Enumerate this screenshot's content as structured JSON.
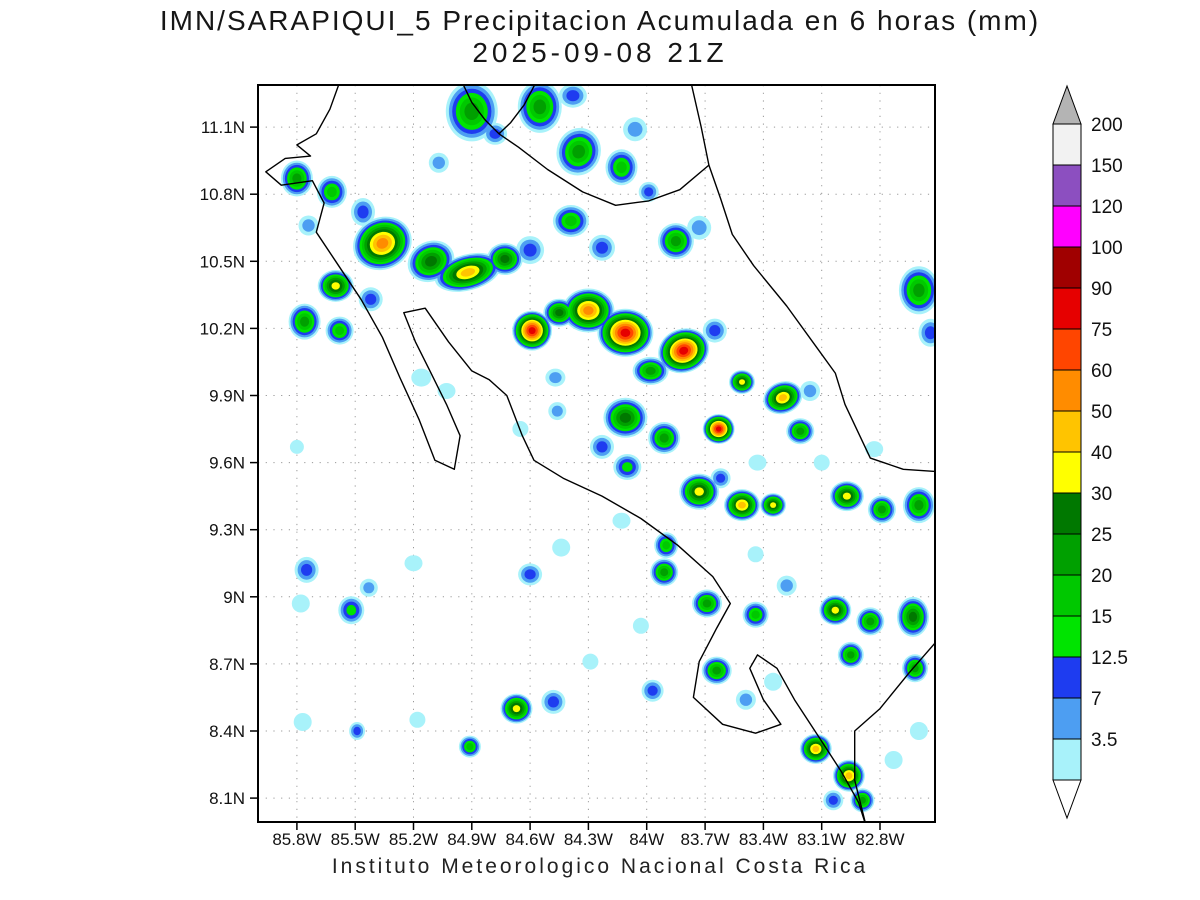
{
  "chart_data": {
    "type": "heatmap",
    "title": "IMN/SARAPIQUI_5 Precipitacion Acumulada en 6 horas (mm)",
    "subtitle": "2025-09-08 21Z",
    "caption": "Instituto Meteorologico Nacional Costa Rica",
    "units": "mm",
    "extent": {
      "lon_west": 86.0,
      "lon_east": 82.517,
      "lat_north": 11.288,
      "lat_south": 7.993
    },
    "x_axis": {
      "ticks": [
        {
          "v": 85.8,
          "label": "85.8W"
        },
        {
          "v": 85.5,
          "label": "85.5W"
        },
        {
          "v": 85.2,
          "label": "85.2W"
        },
        {
          "v": 84.9,
          "label": "84.9W"
        },
        {
          "v": 84.6,
          "label": "84.6W"
        },
        {
          "v": 84.3,
          "label": "84.3W"
        },
        {
          "v": 84.0,
          "label": "84W"
        },
        {
          "v": 83.7,
          "label": "83.7W"
        },
        {
          "v": 83.4,
          "label": "83.4W"
        },
        {
          "v": 83.1,
          "label": "83.1W"
        },
        {
          "v": 82.8,
          "label": "82.8W"
        }
      ]
    },
    "y_axis": {
      "ticks": [
        {
          "v": 11.1,
          "label": "11.1N"
        },
        {
          "v": 10.8,
          "label": "10.8N"
        },
        {
          "v": 10.5,
          "label": "10.5N"
        },
        {
          "v": 10.2,
          "label": "10.2N"
        },
        {
          "v": 9.9,
          "label": "9.9N"
        },
        {
          "v": 9.6,
          "label": "9.6N"
        },
        {
          "v": 9.3,
          "label": "9.3N"
        },
        {
          "v": 9.0,
          "label": "9N"
        },
        {
          "v": 8.7,
          "label": "8.7N"
        },
        {
          "v": 8.4,
          "label": "8.4N"
        },
        {
          "v": 8.1,
          "label": "8.1N"
        }
      ]
    },
    "levels": [
      3.5,
      7,
      12.5,
      15,
      20,
      25,
      30,
      40,
      50,
      60,
      75,
      90,
      100,
      120,
      150,
      200
    ],
    "level_colors": [
      "#a8f2fa",
      "#4d9ef2",
      "#1e3cf0",
      "#00e400",
      "#00c800",
      "#00a000",
      "#007800",
      "#ffff00",
      "#ffc400",
      "#ff8c00",
      "#ff4500",
      "#e60000",
      "#a00000",
      "#ff00ff",
      "#8c4fc0",
      "#f2f2f2"
    ],
    "colorbar": {
      "tick_labels": [
        "200",
        "150",
        "120",
        "100",
        "90",
        "75",
        "60",
        "50",
        "40",
        "30",
        "25",
        "20",
        "15",
        "12.5",
        "7",
        "3.5"
      ],
      "arrow_top_color": "#b4b4b4",
      "arrow_bottom_color": "#ffffff"
    },
    "style": {
      "grid_color": "#999999",
      "coast_color": "#000000",
      "background": "#ffffff"
    },
    "cells_format": "[lon_w, lat_n, rx_px, ry_px, max_level_mm, rotation_deg]",
    "cells": [
      [
        84.9,
        11.17,
        26,
        30,
        25,
        0
      ],
      [
        84.55,
        11.19,
        22,
        26,
        25,
        0
      ],
      [
        84.38,
        11.24,
        14,
        12,
        12.5,
        0
      ],
      [
        84.78,
        11.07,
        12,
        11,
        12.5,
        0
      ],
      [
        85.07,
        10.94,
        10,
        10,
        7,
        0
      ],
      [
        84.35,
        10.99,
        22,
        24,
        25,
        20
      ],
      [
        84.13,
        10.92,
        16,
        18,
        20,
        0
      ],
      [
        84.06,
        11.09,
        12,
        12,
        7,
        0
      ],
      [
        83.99,
        10.81,
        10,
        10,
        12.5,
        0
      ],
      [
        85.8,
        10.87,
        16,
        18,
        25,
        0
      ],
      [
        85.62,
        10.81,
        15,
        16,
        20,
        0
      ],
      [
        85.46,
        10.72,
        12,
        14,
        12.5,
        0
      ],
      [
        85.74,
        10.66,
        10,
        10,
        7,
        0
      ],
      [
        85.36,
        10.58,
        30,
        26,
        60,
        -25
      ],
      [
        85.11,
        10.5,
        24,
        20,
        30,
        -25
      ],
      [
        84.92,
        10.45,
        34,
        18,
        50,
        -15
      ],
      [
        84.73,
        10.51,
        18,
        16,
        30,
        0
      ],
      [
        84.6,
        10.55,
        14,
        14,
        12.5,
        0
      ],
      [
        85.6,
        10.39,
        18,
        16,
        40,
        0
      ],
      [
        85.76,
        10.23,
        16,
        18,
        25,
        0
      ],
      [
        85.58,
        10.19,
        14,
        14,
        20,
        0
      ],
      [
        85.42,
        10.33,
        12,
        12,
        12.5,
        0
      ],
      [
        84.39,
        10.68,
        18,
        16,
        20,
        0
      ],
      [
        84.23,
        10.56,
        13,
        13,
        12.5,
        0
      ],
      [
        83.85,
        10.59,
        18,
        18,
        25,
        0
      ],
      [
        83.73,
        10.65,
        12,
        12,
        7,
        0
      ],
      [
        82.6,
        10.37,
        20,
        24,
        25,
        0
      ],
      [
        82.54,
        10.18,
        12,
        14,
        12.5,
        0
      ],
      [
        84.59,
        10.19,
        20,
        20,
        90,
        0
      ],
      [
        84.45,
        10.27,
        16,
        14,
        30,
        0
      ],
      [
        84.3,
        10.28,
        26,
        22,
        60,
        0
      ],
      [
        84.11,
        10.18,
        28,
        24,
        90,
        0
      ],
      [
        83.81,
        10.1,
        26,
        22,
        90,
        -20
      ],
      [
        83.98,
        10.01,
        18,
        14,
        25,
        0
      ],
      [
        83.65,
        10.19,
        12,
        12,
        12.5,
        0
      ],
      [
        83.51,
        9.96,
        13,
        12,
        40,
        0
      ],
      [
        83.3,
        9.89,
        20,
        16,
        50,
        -20
      ],
      [
        83.16,
        9.92,
        10,
        10,
        7,
        0
      ],
      [
        84.11,
        9.8,
        22,
        20,
        30,
        0
      ],
      [
        83.91,
        9.71,
        16,
        16,
        25,
        0
      ],
      [
        83.63,
        9.75,
        16,
        15,
        90,
        0
      ],
      [
        83.21,
        9.74,
        14,
        13,
        25,
        0
      ],
      [
        84.23,
        9.67,
        12,
        12,
        12.5,
        0
      ],
      [
        84.1,
        9.58,
        14,
        13,
        15,
        0
      ],
      [
        83.73,
        9.47,
        20,
        18,
        40,
        0
      ],
      [
        83.51,
        9.41,
        18,
        16,
        50,
        0
      ],
      [
        83.35,
        9.41,
        13,
        12,
        40,
        0
      ],
      [
        82.97,
        9.45,
        17,
        15,
        40,
        0
      ],
      [
        82.79,
        9.39,
        14,
        14,
        25,
        0
      ],
      [
        82.6,
        9.41,
        16,
        18,
        25,
        0
      ],
      [
        83.9,
        9.23,
        12,
        13,
        20,
        0
      ],
      [
        83.62,
        9.53,
        10,
        10,
        12.5,
        0
      ],
      [
        85.75,
        9.12,
        12,
        13,
        12.5,
        0
      ],
      [
        85.52,
        8.94,
        13,
        14,
        15,
        0
      ],
      [
        85.78,
        8.97,
        9,
        9,
        3.5,
        0
      ],
      [
        85.43,
        9.04,
        9,
        9,
        7,
        0
      ],
      [
        85.2,
        9.15,
        9,
        8,
        3.5,
        0
      ],
      [
        84.6,
        9.1,
        12,
        11,
        12.5,
        0
      ],
      [
        84.44,
        9.22,
        9,
        9,
        3.5,
        0
      ],
      [
        83.91,
        9.11,
        14,
        14,
        25,
        0
      ],
      [
        83.69,
        8.97,
        15,
        14,
        25,
        0
      ],
      [
        83.44,
        8.92,
        13,
        13,
        20,
        0
      ],
      [
        83.03,
        8.94,
        16,
        15,
        40,
        0
      ],
      [
        82.85,
        8.89,
        14,
        14,
        25,
        0
      ],
      [
        82.63,
        8.91,
        16,
        20,
        30,
        0
      ],
      [
        82.95,
        8.74,
        13,
        13,
        25,
        0
      ],
      [
        82.62,
        8.68,
        13,
        14,
        25,
        0
      ],
      [
        83.28,
        9.05,
        10,
        10,
        7,
        0
      ],
      [
        83.64,
        8.67,
        15,
        14,
        25,
        0
      ],
      [
        83.49,
        8.54,
        10,
        10,
        7,
        0
      ],
      [
        83.97,
        8.58,
        11,
        11,
        12.5,
        0
      ],
      [
        83.35,
        8.62,
        9,
        9,
        3.5,
        0
      ],
      [
        84.67,
        8.5,
        16,
        15,
        40,
        0
      ],
      [
        84.48,
        8.53,
        12,
        12,
        12.5,
        0
      ],
      [
        84.91,
        8.33,
        11,
        11,
        20,
        0
      ],
      [
        85.49,
        8.4,
        8,
        9,
        12.5,
        0
      ],
      [
        85.77,
        8.44,
        9,
        9,
        3.5,
        0
      ],
      [
        85.18,
        8.45,
        8,
        8,
        3.5,
        0
      ],
      [
        83.13,
        8.32,
        16,
        15,
        50,
        0
      ],
      [
        82.96,
        8.2,
        16,
        16,
        50,
        -30
      ],
      [
        82.89,
        8.09,
        12,
        12,
        25,
        0
      ],
      [
        83.04,
        8.09,
        10,
        10,
        12.5,
        0
      ],
      [
        82.73,
        8.27,
        9,
        9,
        3.5,
        0
      ],
      [
        82.6,
        8.4,
        9,
        9,
        3.5,
        0
      ],
      [
        85.16,
        9.98,
        10,
        9,
        3.5,
        0
      ],
      [
        85.03,
        9.92,
        9,
        8,
        3.5,
        0
      ],
      [
        84.47,
        9.98,
        10,
        9,
        7,
        0
      ],
      [
        84.46,
        9.83,
        9,
        9,
        7,
        0
      ],
      [
        84.65,
        9.75,
        8,
        8,
        3.5,
        0
      ],
      [
        84.13,
        9.34,
        9,
        8,
        3.5,
        0
      ],
      [
        83.43,
        9.6,
        9,
        8,
        3.5,
        0
      ],
      [
        83.1,
        9.6,
        8,
        8,
        3.5,
        0
      ],
      [
        82.83,
        9.66,
        9,
        8,
        3.5,
        0
      ],
      [
        83.44,
        9.19,
        8,
        8,
        3.5,
        0
      ],
      [
        84.03,
        8.87,
        8,
        8,
        3.5,
        0
      ],
      [
        84.29,
        8.71,
        8,
        8,
        3.5,
        0
      ],
      [
        85.8,
        9.67,
        7,
        7,
        3.5,
        0
      ]
    ],
    "coastlines": [
      [
        [
          85.58,
          11.3
        ],
        [
          85.63,
          11.18
        ],
        [
          85.7,
          11.07
        ],
        [
          85.8,
          11.02
        ],
        [
          85.73,
          10.97
        ],
        [
          85.86,
          10.96
        ],
        [
          85.96,
          10.9
        ],
        [
          85.88,
          10.84
        ],
        [
          85.72,
          10.86
        ],
        [
          85.66,
          10.76
        ],
        [
          85.7,
          10.63
        ],
        [
          85.6,
          10.5
        ],
        [
          85.47,
          10.33
        ],
        [
          85.36,
          10.16
        ],
        [
          85.27,
          9.98
        ],
        [
          85.17,
          9.79
        ],
        [
          85.09,
          9.61
        ],
        [
          84.99,
          9.57
        ],
        [
          84.96,
          9.72
        ],
        [
          85.03,
          9.86
        ],
        [
          85.11,
          10.0
        ],
        [
          85.19,
          10.14
        ],
        [
          85.25,
          10.27
        ],
        [
          85.14,
          10.29
        ],
        [
          85.02,
          10.14
        ],
        [
          84.9,
          10.01
        ],
        [
          84.81,
          9.97
        ],
        [
          84.72,
          9.9
        ],
        [
          84.64,
          9.72
        ],
        [
          84.58,
          9.61
        ],
        [
          84.43,
          9.53
        ],
        [
          84.23,
          9.45
        ],
        [
          84.03,
          9.35
        ],
        [
          83.84,
          9.23
        ],
        [
          83.66,
          9.09
        ],
        [
          83.57,
          8.97
        ],
        [
          83.64,
          8.86
        ],
        [
          83.73,
          8.71
        ],
        [
          83.76,
          8.55
        ],
        [
          83.61,
          8.43
        ],
        [
          83.44,
          8.39
        ],
        [
          83.31,
          8.43
        ],
        [
          83.4,
          8.54
        ],
        [
          83.47,
          8.68
        ],
        [
          83.43,
          8.74
        ],
        [
          83.33,
          8.68
        ],
        [
          83.24,
          8.54
        ],
        [
          83.12,
          8.38
        ],
        [
          83.0,
          8.22
        ],
        [
          82.91,
          8.08
        ],
        [
          82.87,
          7.97
        ]
      ],
      [
        [
          82.87,
          7.97
        ],
        [
          82.93,
          8.18
        ],
        [
          82.93,
          8.4
        ],
        [
          82.8,
          8.5
        ],
        [
          82.65,
          8.66
        ],
        [
          82.51,
          8.8
        ]
      ],
      [
        [
          82.51,
          9.56
        ],
        [
          82.68,
          9.57
        ],
        [
          82.85,
          9.62
        ],
        [
          82.98,
          9.86
        ],
        [
          83.03,
          10.0
        ],
        [
          83.13,
          10.12
        ],
        [
          83.28,
          10.3
        ],
        [
          83.45,
          10.48
        ],
        [
          83.56,
          10.62
        ],
        [
          83.62,
          10.78
        ],
        [
          83.68,
          10.93
        ],
        [
          83.83,
          10.82
        ],
        [
          83.99,
          10.77
        ],
        [
          84.16,
          10.75
        ],
        [
          84.33,
          10.81
        ],
        [
          84.51,
          10.91
        ],
        [
          84.66,
          11.01
        ],
        [
          84.76,
          11.07
        ],
        [
          84.83,
          11.13
        ],
        [
          84.9,
          11.21
        ],
        [
          84.95,
          11.3
        ]
      ],
      [
        [
          84.57,
          11.3
        ],
        [
          84.63,
          11.2
        ],
        [
          84.7,
          11.12
        ],
        [
          84.76,
          11.07
        ]
      ],
      [
        [
          83.68,
          10.93
        ],
        [
          83.72,
          11.1
        ],
        [
          83.77,
          11.29
        ]
      ]
    ]
  }
}
